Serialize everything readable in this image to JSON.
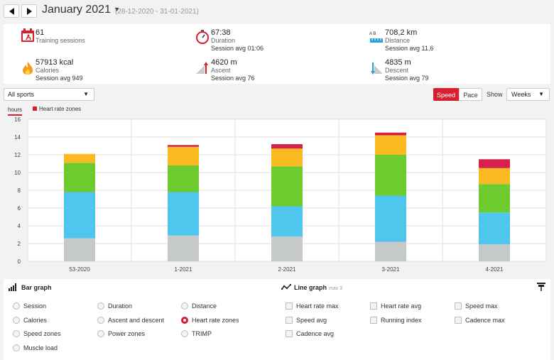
{
  "nav": {
    "month_label": "January 2021",
    "date_range": "(28-12-2020 - 31-01-2021)"
  },
  "summary": {
    "sessions": {
      "value": "61",
      "label": "Training sessions"
    },
    "duration": {
      "value": "67:38",
      "label": "Duration",
      "sub": "Session avg 01:06"
    },
    "distance": {
      "value": "708,2 km",
      "label": "Distance",
      "sub": "Session avg 11,6"
    },
    "calories": {
      "value": "57913 kcal",
      "label": "Calories",
      "sub": "Session avg 949"
    },
    "ascent": {
      "value": "4620 m",
      "label": "Ascent",
      "sub": "Session avg 76"
    },
    "descent": {
      "value": "4835 m",
      "label": "Descent",
      "sub": "Session avg 79"
    },
    "distance_icon_letters": "A  B"
  },
  "controls": {
    "sport_select": "All sports",
    "speed_label": "Speed",
    "pace_label": "Pace",
    "show_label": "Show",
    "period_select": "Weeks"
  },
  "chart_data": {
    "type": "bar",
    "stacked": true,
    "ylabel": "hours",
    "ylim": [
      0,
      16
    ],
    "yticks": [
      0,
      2,
      4,
      6,
      8,
      10,
      12,
      14,
      16
    ],
    "legend": [
      "Heart rate zones"
    ],
    "categories": [
      "53-2020",
      "1-2021",
      "2-2021",
      "3-2021",
      "4-2021"
    ],
    "series": [
      {
        "color": "#c5c9c9",
        "values": [
          2.6,
          2.9,
          2.8,
          2.2,
          1.9
        ]
      },
      {
        "color": "#4ec6ee",
        "values": [
          5.2,
          4.9,
          3.4,
          5.2,
          3.6
        ]
      },
      {
        "color": "#6dcb30",
        "values": [
          3.3,
          3.0,
          4.5,
          4.6,
          3.2
        ]
      },
      {
        "color": "#fabb22",
        "values": [
          1.0,
          2.1,
          2.0,
          2.2,
          1.8
        ]
      },
      {
        "color": "#d6204e",
        "values": [
          0.0,
          0.2,
          0.5,
          0.3,
          1.0
        ]
      }
    ],
    "grid": true
  },
  "panel": {
    "bar_title": "Bar graph",
    "line_title": "Line graph",
    "line_max": "max 3",
    "bar_options": [
      {
        "label": "Session",
        "selected": false
      },
      {
        "label": "Duration",
        "selected": false
      },
      {
        "label": "Distance",
        "selected": false
      },
      {
        "label": "Calories",
        "selected": false
      },
      {
        "label": "Ascent and descent",
        "selected": false
      },
      {
        "label": "Heart rate zones",
        "selected": true
      },
      {
        "label": "Speed zones",
        "selected": false
      },
      {
        "label": "Power zones",
        "selected": false
      },
      {
        "label": "TRIMP",
        "selected": false
      },
      {
        "label": "Muscle load",
        "selected": false
      }
    ],
    "line_options": [
      {
        "label": "Heart rate max"
      },
      {
        "label": "Heart rate avg"
      },
      {
        "label": "Speed max"
      },
      {
        "label": "Speed avg"
      },
      {
        "label": "Running index"
      },
      {
        "label": "Cadence max"
      },
      {
        "label": "Cadence avg"
      }
    ]
  }
}
